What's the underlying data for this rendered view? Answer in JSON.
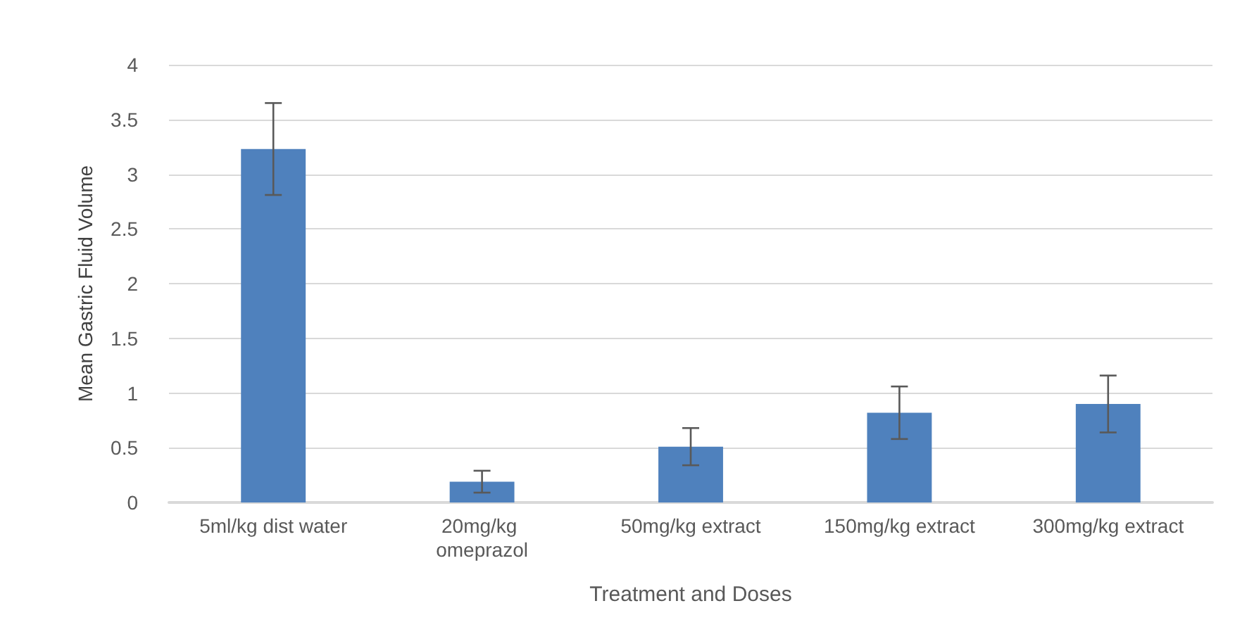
{
  "chart_data": {
    "type": "bar",
    "xlabel": "Treatment and Doses",
    "ylabel": "Mean Gastric Fluid Volume",
    "categories": [
      "5ml/kg dist water",
      "20mg/kg omeprazol",
      "50mg/kg extract",
      "150mg/kg extract",
      "300mg/kg extract"
    ],
    "values": [
      3.23,
      0.19,
      0.51,
      0.82,
      0.9
    ],
    "errors": [
      0.42,
      0.1,
      0.17,
      0.24,
      0.26
    ],
    "color": "#4f81bd",
    "ylim": [
      0,
      4
    ],
    "yticks": [
      0,
      0.5,
      1,
      1.5,
      2,
      2.5,
      3,
      3.5,
      4
    ],
    "grid": "y"
  }
}
